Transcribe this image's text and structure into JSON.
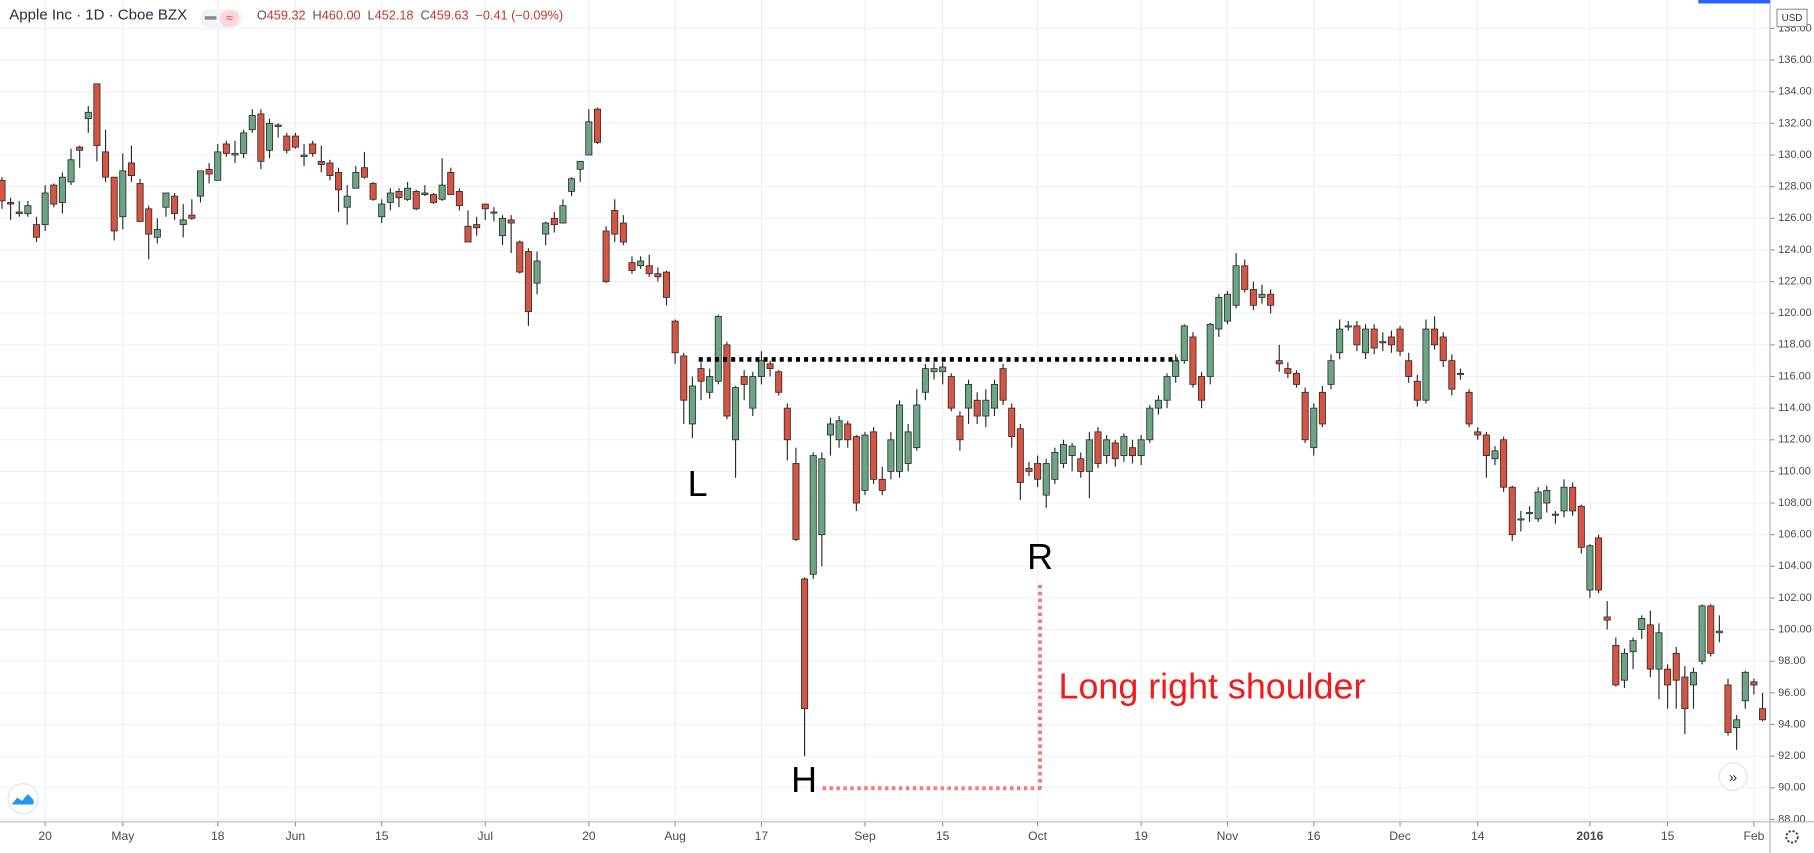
{
  "header": {
    "symbol": "Apple Inc · 1D · Cboe BZX",
    "ohlc": [
      {
        "key": "O",
        "value": "459.32"
      },
      {
        "key": "H",
        "value": "460.00"
      },
      {
        "key": "L",
        "value": "452.18"
      },
      {
        "key": "C",
        "value": "459.63"
      }
    ],
    "change": "−0.41 (−0.09%)",
    "currency": "USD"
  },
  "chart_data": {
    "type": "candlestick",
    "up_color": "#6ba583",
    "down_color": "#d75442",
    "wick_color": "#2b2b2b",
    "grid": true,
    "annotations": [
      "L",
      "H",
      "R",
      "Long right shoulder"
    ],
    "xlim": [
      -0.23,
      204.87
    ],
    "xticks": [
      {
        "value": 5,
        "label": "20"
      },
      {
        "value": 14,
        "label": "May"
      },
      {
        "value": 25,
        "label": "18"
      },
      {
        "value": 34,
        "label": "Jun"
      },
      {
        "value": 44,
        "label": "15"
      },
      {
        "value": 56,
        "label": "Jul"
      },
      {
        "value": 68,
        "label": "20"
      },
      {
        "value": 78,
        "label": "Aug"
      },
      {
        "value": 88,
        "label": "17"
      },
      {
        "value": 100,
        "label": "Sep"
      },
      {
        "value": 109,
        "label": "15"
      },
      {
        "value": 120,
        "label": "Oct"
      },
      {
        "value": 132,
        "label": "19"
      },
      {
        "value": 142,
        "label": "Nov"
      },
      {
        "value": 152,
        "label": "16"
      },
      {
        "value": 162,
        "label": "Dec"
      },
      {
        "value": 171,
        "label": "14"
      },
      {
        "value": 184,
        "label": "2016",
        "bold": true
      },
      {
        "value": 193,
        "label": "15"
      },
      {
        "value": 203,
        "label": "Feb"
      }
    ],
    "ylim": [
      87.85,
      139.8
    ],
    "yticks": [
      {
        "value": 88,
        "label": "88.00"
      },
      {
        "value": 90,
        "label": "90.00"
      },
      {
        "value": 92,
        "label": "92.00"
      },
      {
        "value": 94,
        "label": "94.00"
      },
      {
        "value": 96,
        "label": "96.00"
      },
      {
        "value": 98,
        "label": "98.00"
      },
      {
        "value": 100,
        "label": "100.00"
      },
      {
        "value": 102,
        "label": "102.00"
      },
      {
        "value": 104,
        "label": "104.00"
      },
      {
        "value": 106,
        "label": "106.00"
      },
      {
        "value": 108,
        "label": "108.00"
      },
      {
        "value": 110,
        "label": "110.00"
      },
      {
        "value": 112,
        "label": "112.00"
      },
      {
        "value": 114,
        "label": "114.00"
      },
      {
        "value": 116,
        "label": "116.00"
      },
      {
        "value": 118,
        "label": "118.00"
      },
      {
        "value": 120,
        "label": "120.00"
      },
      {
        "value": 122,
        "label": "122.00"
      },
      {
        "value": 124,
        "label": "124.00"
      },
      {
        "value": 126,
        "label": "126.00"
      },
      {
        "value": 128,
        "label": "128.00"
      },
      {
        "value": 130,
        "label": "130.00"
      },
      {
        "value": 132,
        "label": "132.00"
      },
      {
        "value": 134,
        "label": "134.00"
      },
      {
        "value": 136,
        "label": "136.00"
      },
      {
        "value": 138,
        "label": "138.00"
      }
    ],
    "ohlc": [
      [
        128.4,
        128.6,
        126.6,
        127.1
      ],
      [
        127.0,
        127.3,
        125.9,
        126.9
      ],
      [
        126.4,
        127.1,
        126.1,
        126.3
      ],
      [
        126.3,
        127.1,
        126.1,
        126.8
      ],
      [
        125.6,
        126.1,
        124.5,
        124.8
      ],
      [
        125.6,
        128.1,
        125.2,
        127.6
      ],
      [
        128.1,
        128.2,
        126.7,
        126.9
      ],
      [
        127.0,
        128.9,
        126.3,
        128.6
      ],
      [
        128.3,
        130.4,
        128.1,
        129.7
      ],
      [
        130.5,
        130.6,
        129.2,
        130.3
      ],
      [
        132.3,
        133.1,
        131.4,
        132.7
      ],
      [
        134.5,
        134.5,
        129.6,
        130.6
      ],
      [
        130.2,
        131.6,
        128.3,
        128.6
      ],
      [
        128.6,
        128.6,
        124.6,
        125.2
      ],
      [
        126.1,
        130.1,
        125.3,
        129.0
      ],
      [
        129.5,
        130.6,
        128.3,
        128.7
      ],
      [
        128.2,
        128.5,
        125.8,
        125.8
      ],
      [
        126.6,
        126.8,
        123.4,
        125.0
      ],
      [
        124.8,
        126.0,
        124.4,
        125.3
      ],
      [
        126.7,
        127.6,
        126.1,
        127.6
      ],
      [
        127.4,
        127.6,
        125.9,
        126.3
      ],
      [
        125.6,
        126.9,
        124.8,
        125.9
      ],
      [
        126.2,
        127.2,
        125.9,
        126.0
      ],
      [
        127.4,
        129.0,
        127.0,
        129.0
      ],
      [
        129.1,
        129.5,
        128.2,
        128.8
      ],
      [
        128.4,
        130.7,
        128.4,
        130.2
      ],
      [
        130.7,
        130.9,
        129.9,
        130.1
      ],
      [
        130.0,
        130.9,
        129.5,
        130.1
      ],
      [
        130.1,
        131.6,
        129.8,
        131.4
      ],
      [
        131.6,
        132.9,
        131.4,
        132.5
      ],
      [
        132.6,
        132.9,
        129.1,
        129.6
      ],
      [
        130.3,
        132.3,
        129.8,
        132.0
      ],
      [
        131.9,
        132.0,
        131.1,
        131.8
      ],
      [
        131.2,
        131.4,
        130.1,
        130.3
      ],
      [
        131.2,
        131.4,
        130.4,
        130.5
      ],
      [
        129.9,
        130.7,
        129.3,
        130.0
      ],
      [
        130.7,
        130.9,
        129.9,
        130.1
      ],
      [
        129.6,
        130.6,
        128.9,
        129.4
      ],
      [
        129.5,
        129.7,
        128.4,
        128.7
      ],
      [
        128.9,
        129.2,
        126.4,
        127.8
      ],
      [
        126.7,
        128.1,
        125.6,
        127.4
      ],
      [
        127.9,
        129.3,
        127.9,
        128.9
      ],
      [
        129.2,
        130.2,
        128.5,
        128.6
      ],
      [
        128.2,
        128.3,
        127.1,
        127.2
      ],
      [
        126.1,
        127.2,
        125.7,
        126.9
      ],
      [
        127.0,
        127.9,
        126.5,
        127.6
      ],
      [
        127.7,
        127.9,
        126.7,
        127.3
      ],
      [
        127.2,
        128.3,
        127.1,
        127.9
      ],
      [
        127.7,
        127.8,
        126.5,
        126.6
      ],
      [
        127.5,
        128.1,
        127.4,
        127.6
      ],
      [
        127.5,
        127.6,
        126.9,
        127.0
      ],
      [
        127.2,
        129.8,
        127.1,
        128.1
      ],
      [
        128.9,
        129.2,
        127.5,
        127.5
      ],
      [
        127.7,
        127.9,
        126.5,
        126.8
      ],
      [
        125.5,
        126.5,
        124.5,
        124.5
      ],
      [
        125.6,
        126.1,
        124.9,
        125.4
      ],
      [
        126.9,
        126.9,
        125.9,
        126.6
      ],
      [
        126.4,
        126.7,
        125.8,
        126.4
      ],
      [
        124.9,
        126.2,
        124.3,
        126.0
      ],
      [
        125.9,
        126.2,
        123.8,
        125.7
      ],
      [
        124.5,
        124.6,
        122.5,
        122.6
      ],
      [
        123.9,
        124.1,
        119.2,
        120.1
      ],
      [
        121.9,
        123.9,
        121.2,
        123.3
      ],
      [
        125.0,
        125.8,
        124.3,
        125.7
      ],
      [
        126.0,
        126.4,
        125.1,
        125.6
      ],
      [
        125.7,
        127.2,
        125.7,
        126.8
      ],
      [
        127.7,
        128.6,
        127.4,
        128.5
      ],
      [
        129.1,
        129.6,
        128.3,
        129.6
      ],
      [
        130.0,
        132.9,
        130.0,
        132.1
      ],
      [
        132.9,
        133.0,
        130.7,
        130.8
      ],
      [
        125.2,
        125.5,
        121.9,
        122.0
      ],
      [
        126.5,
        127.2,
        124.5,
        125.0
      ],
      [
        125.7,
        126.2,
        124.3,
        124.5
      ],
      [
        123.2,
        123.6,
        122.5,
        122.7
      ],
      [
        123.0,
        123.6,
        122.8,
        123.3
      ],
      [
        123.0,
        123.7,
        122.3,
        122.5
      ],
      [
        122.5,
        122.9,
        122.0,
        122.3
      ],
      [
        122.6,
        122.7,
        120.5,
        121.0
      ],
      [
        119.5,
        119.6,
        116.8,
        117.5
      ],
      [
        117.3,
        117.5,
        113.0,
        114.5
      ],
      [
        113.0,
        116.0,
        112.1,
        115.4
      ],
      [
        116.5,
        116.9,
        114.5,
        115.7
      ],
      [
        115.0,
        116.5,
        114.6,
        116.0
      ],
      [
        115.7,
        119.9,
        115.5,
        119.8
      ],
      [
        118.0,
        118.2,
        113.3,
        113.5
      ],
      [
        112.0,
        115.4,
        109.6,
        115.3
      ],
      [
        116.0,
        116.4,
        114.5,
        115.5
      ],
      [
        114.0,
        116.3,
        113.5,
        116.0
      ],
      [
        116.0,
        117.6,
        115.5,
        117.0
      ],
      [
        116.8,
        117.0,
        116.0,
        116.5
      ],
      [
        116.3,
        116.4,
        114.8,
        115.0
      ],
      [
        114.0,
        114.3,
        110.7,
        112.0
      ],
      [
        110.5,
        111.5,
        105.6,
        105.7
      ],
      [
        103.2,
        103.3,
        92.0,
        95.0
      ],
      [
        103.5,
        111.2,
        103.2,
        111.0
      ],
      [
        106.0,
        111.2,
        104.0,
        110.8
      ],
      [
        112.3,
        113.4,
        111.0,
        113.0
      ],
      [
        112.0,
        113.5,
        111.5,
        113.2
      ],
      [
        113.0,
        113.2,
        111.5,
        112.0
      ],
      [
        112.2,
        112.3,
        107.5,
        108.0
      ],
      [
        108.8,
        112.5,
        108.5,
        112.3
      ],
      [
        112.5,
        112.8,
        109.2,
        109.5
      ],
      [
        109.5,
        110.3,
        108.5,
        108.8
      ],
      [
        110.0,
        112.5,
        109.5,
        112.0
      ],
      [
        110.0,
        114.5,
        109.6,
        114.2
      ],
      [
        110.5,
        113.0,
        110.0,
        112.5
      ],
      [
        111.5,
        115.2,
        111.3,
        114.2
      ],
      [
        115.0,
        116.8,
        114.5,
        116.5
      ],
      [
        116.3,
        116.9,
        115.8,
        116.5
      ],
      [
        116.3,
        116.9,
        115.5,
        116.6
      ],
      [
        116.0,
        116.2,
        113.8,
        114.0
      ],
      [
        113.5,
        113.8,
        111.3,
        112.0
      ],
      [
        114.0,
        115.8,
        113.0,
        115.5
      ],
      [
        114.5,
        115.0,
        113.0,
        113.5
      ],
      [
        113.5,
        115.2,
        112.8,
        114.5
      ],
      [
        114.0,
        115.8,
        113.5,
        115.5
      ],
      [
        116.5,
        116.8,
        114.2,
        114.5
      ],
      [
        114.0,
        114.3,
        111.5,
        112.2
      ],
      [
        112.7,
        113.0,
        108.2,
        109.3
      ],
      [
        110.2,
        110.6,
        109.7,
        110.0
      ],
      [
        110.5,
        111.0,
        109.0,
        109.5
      ],
      [
        108.5,
        110.8,
        107.7,
        110.5
      ],
      [
        109.5,
        111.5,
        109.2,
        111.2
      ],
      [
        110.5,
        112.0,
        110.2,
        111.7
      ],
      [
        111.0,
        111.8,
        110.0,
        111.6
      ],
      [
        110.8,
        111.2,
        109.6,
        110.0
      ],
      [
        110.0,
        112.5,
        108.3,
        112.0
      ],
      [
        112.5,
        112.8,
        110.2,
        110.5
      ],
      [
        111.0,
        112.3,
        110.5,
        112.0
      ],
      [
        111.8,
        112.0,
        110.3,
        110.8
      ],
      [
        111.0,
        112.4,
        110.6,
        112.2
      ],
      [
        111.5,
        112.0,
        110.5,
        111.0
      ],
      [
        111.0,
        112.3,
        110.4,
        112.0
      ],
      [
        112.0,
        114.2,
        111.8,
        114.0
      ],
      [
        114.0,
        114.8,
        113.6,
        114.5
      ],
      [
        114.5,
        116.2,
        114.0,
        116.0
      ],
      [
        116.0,
        117.4,
        115.6,
        117.0
      ],
      [
        117.0,
        119.3,
        116.8,
        119.2
      ],
      [
        118.5,
        118.8,
        115.3,
        115.5
      ],
      [
        116.0,
        116.3,
        114.0,
        114.5
      ],
      [
        116.0,
        119.4,
        115.5,
        119.3
      ],
      [
        119.0,
        121.2,
        118.5,
        121.0
      ],
      [
        119.5,
        121.4,
        119.3,
        121.2
      ],
      [
        120.5,
        123.8,
        120.3,
        123.0
      ],
      [
        123.0,
        123.4,
        121.3,
        121.5
      ],
      [
        121.5,
        122.0,
        120.2,
        120.5
      ],
      [
        121.0,
        121.8,
        120.6,
        121.2
      ],
      [
        121.2,
        121.5,
        120.0,
        120.5
      ],
      [
        117.0,
        118.0,
        116.3,
        116.8
      ],
      [
        116.5,
        116.9,
        115.9,
        116.2
      ],
      [
        116.2,
        116.4,
        115.3,
        115.5
      ],
      [
        115.0,
        115.3,
        111.8,
        112.0
      ],
      [
        111.5,
        114.3,
        111.0,
        114.0
      ],
      [
        115.0,
        115.4,
        112.8,
        113.0
      ],
      [
        115.5,
        117.4,
        115.2,
        117.0
      ],
      [
        117.5,
        119.6,
        117.1,
        119.0
      ],
      [
        119.2,
        119.5,
        118.9,
        119.2
      ],
      [
        119.2,
        119.5,
        117.6,
        118.0
      ],
      [
        117.5,
        119.3,
        117.1,
        119.0
      ],
      [
        119.0,
        119.3,
        117.4,
        117.8
      ],
      [
        118.2,
        118.8,
        117.6,
        118.2
      ],
      [
        118.5,
        118.9,
        117.5,
        118.0
      ],
      [
        119.0,
        119.2,
        117.3,
        117.6
      ],
      [
        117.0,
        117.5,
        115.6,
        116.0
      ],
      [
        115.7,
        116.1,
        114.1,
        114.5
      ],
      [
        114.5,
        119.6,
        114.3,
        119.0
      ],
      [
        119.0,
        119.8,
        117.7,
        118.0
      ],
      [
        118.5,
        118.8,
        116.6,
        117.0
      ],
      [
        117.0,
        117.4,
        114.8,
        115.2
      ],
      [
        116.2,
        116.5,
        115.8,
        116.2
      ],
      [
        115.0,
        115.2,
        112.8,
        113.0
      ],
      [
        112.5,
        112.8,
        112.0,
        112.3
      ],
      [
        112.3,
        112.5,
        109.6,
        111.0
      ],
      [
        110.8,
        111.6,
        110.4,
        111.3
      ],
      [
        112.0,
        112.2,
        108.7,
        109.0
      ],
      [
        109.0,
        109.1,
        105.6,
        106.0
      ],
      [
        107.0,
        107.5,
        106.2,
        107.0
      ],
      [
        107.4,
        107.8,
        106.8,
        107.4
      ],
      [
        107.0,
        109.0,
        106.8,
        108.7
      ],
      [
        108.0,
        109.1,
        107.4,
        108.8
      ],
      [
        107.3,
        107.5,
        106.7,
        107.3
      ],
      [
        107.5,
        109.5,
        107.1,
        109.0
      ],
      [
        109.0,
        109.3,
        107.2,
        107.5
      ],
      [
        107.8,
        107.9,
        104.8,
        105.2
      ],
      [
        102.5,
        105.4,
        102.0,
        105.3
      ],
      [
        105.8,
        106.0,
        102.3,
        102.5
      ],
      [
        100.8,
        101.8,
        100.0,
        100.6
      ],
      [
        99.0,
        99.5,
        96.4,
        96.5
      ],
      [
        96.8,
        98.8,
        96.3,
        98.5
      ],
      [
        98.6,
        99.5,
        97.5,
        99.3
      ],
      [
        100.0,
        100.9,
        99.4,
        100.7
      ],
      [
        100.3,
        101.2,
        97.0,
        97.5
      ],
      [
        97.5,
        100.4,
        95.6,
        99.8
      ],
      [
        97.5,
        97.8,
        95.0,
        96.5
      ],
      [
        98.5,
        98.9,
        95.0,
        96.8
      ],
      [
        97.0,
        97.7,
        93.4,
        95.0
      ],
      [
        96.5,
        97.6,
        95.0,
        97.3
      ],
      [
        98.0,
        101.6,
        97.8,
        101.5
      ],
      [
        101.5,
        101.6,
        98.3,
        98.5
      ],
      [
        99.8,
        100.9,
        99.2,
        99.9
      ],
      [
        96.5,
        96.9,
        93.3,
        93.5
      ],
      [
        93.8,
        94.6,
        92.4,
        94.3
      ],
      [
        95.5,
        97.4,
        95.0,
        97.3
      ],
      [
        96.7,
        96.9,
        95.9,
        96.5
      ],
      [
        95.0,
        96.0,
        94.2,
        94.3
      ]
    ]
  }
}
